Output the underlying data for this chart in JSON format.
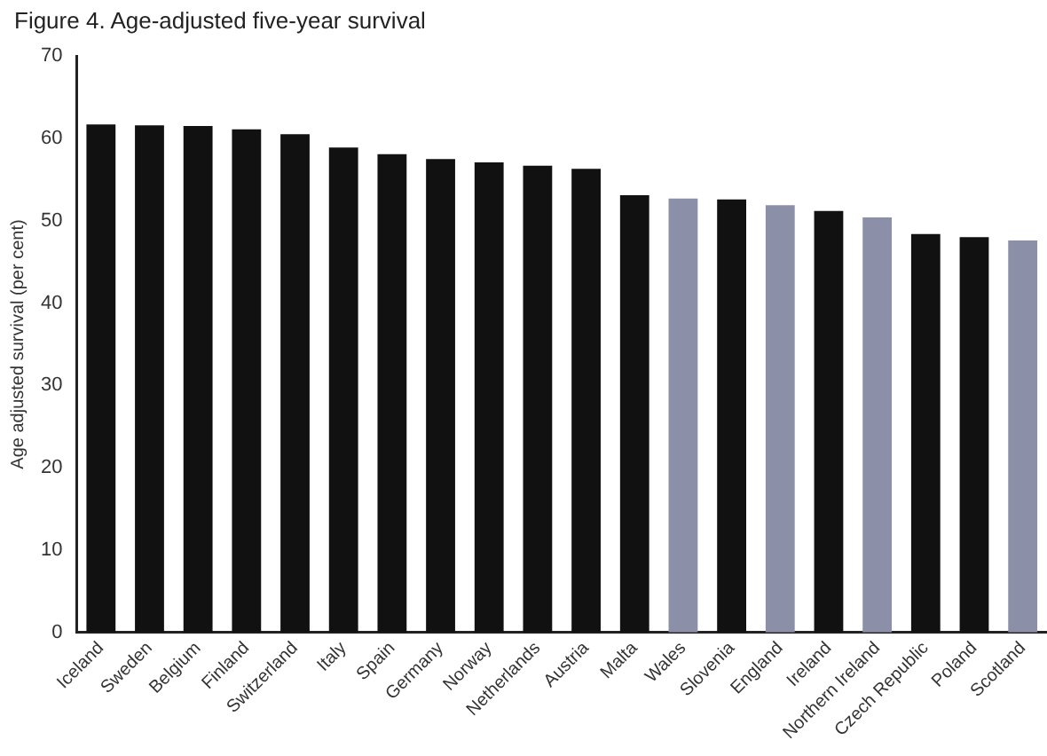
{
  "chart_data": {
    "type": "bar",
    "title": "Figure 4. Age-adjusted five-year survival",
    "ylabel": "Age adjusted survival (per cent)",
    "categories": [
      "Iceland",
      "Sweden",
      "Belgium",
      "Finland",
      "Switzerland",
      "Italy",
      "Spain",
      "Germany",
      "Norway",
      "Netherlands",
      "Austria",
      "Malta",
      "Wales",
      "Slovenia",
      "England",
      "Ireland",
      "Northern Ireland",
      "Czech Republic",
      "Poland",
      "Scotland"
    ],
    "values": [
      61.7,
      61.6,
      61.5,
      61.1,
      60.5,
      58.9,
      58.1,
      57.5,
      57.1,
      56.7,
      56.3,
      53.1,
      52.7,
      52.6,
      51.9,
      51.2,
      50.4,
      48.4,
      48.0,
      47.6
    ],
    "colors": [
      "#111111",
      "#111111",
      "#111111",
      "#111111",
      "#111111",
      "#111111",
      "#111111",
      "#111111",
      "#111111",
      "#111111",
      "#111111",
      "#111111",
      "#8c8fa8",
      "#111111",
      "#8c8fa8",
      "#111111",
      "#8c8fa8",
      "#111111",
      "#111111",
      "#8c8fa8"
    ],
    "ylim": [
      0,
      70
    ],
    "yticks": [
      0,
      10,
      20,
      30,
      40,
      50,
      60,
      70
    ],
    "grid": false,
    "legend": false
  }
}
